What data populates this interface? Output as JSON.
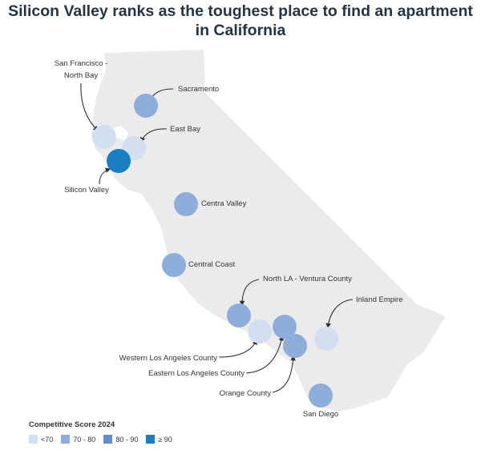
{
  "title": "Silicon Valley ranks as the toughest place to find an apartment in California",
  "legend": {
    "title": "Competitive Score 2024",
    "items": [
      {
        "label": "<70",
        "color": "#d2dff0"
      },
      {
        "label": "70 - 80",
        "color": "#8fadda"
      },
      {
        "label": "80 - 90",
        "color": "#5c8fcf"
      },
      {
        "label": "≥ 90",
        "color": "#1c7dc2"
      }
    ]
  },
  "regions": [
    {
      "name": "San Francisco - North Bay",
      "category": "<70",
      "color": "#d2dff0"
    },
    {
      "name": "Sacramento",
      "category": "70 - 80",
      "color": "#8fadda"
    },
    {
      "name": "East Bay",
      "category": "<70",
      "color": "#d2dff0"
    },
    {
      "name": "Silicon Valley",
      "category": "≥ 90",
      "color": "#1c7dc2"
    },
    {
      "name": "Centra Valley",
      "category": "70 - 80",
      "color": "#8fadda"
    },
    {
      "name": "Central Coast",
      "category": "70 - 80",
      "color": "#8fadda"
    },
    {
      "name": "North LA - Ventura County",
      "category": "70 - 80",
      "color": "#8fadda"
    },
    {
      "name": "Western Los Angeles County",
      "category": "<70",
      "color": "#d2dff0"
    },
    {
      "name": "Eastern Los Angeles County",
      "category": "70 - 80",
      "color": "#8fadda"
    },
    {
      "name": "Orange County",
      "category": "70 - 80",
      "color": "#8fadda"
    },
    {
      "name": "Inland Empire",
      "category": "<70",
      "color": "#d2dff0"
    },
    {
      "name": "San Diego",
      "category": "70 - 80",
      "color": "#8fadda"
    }
  ],
  "colors": {
    "land": "#ebebeb",
    "title": "#243447",
    "leader": "#333333"
  }
}
